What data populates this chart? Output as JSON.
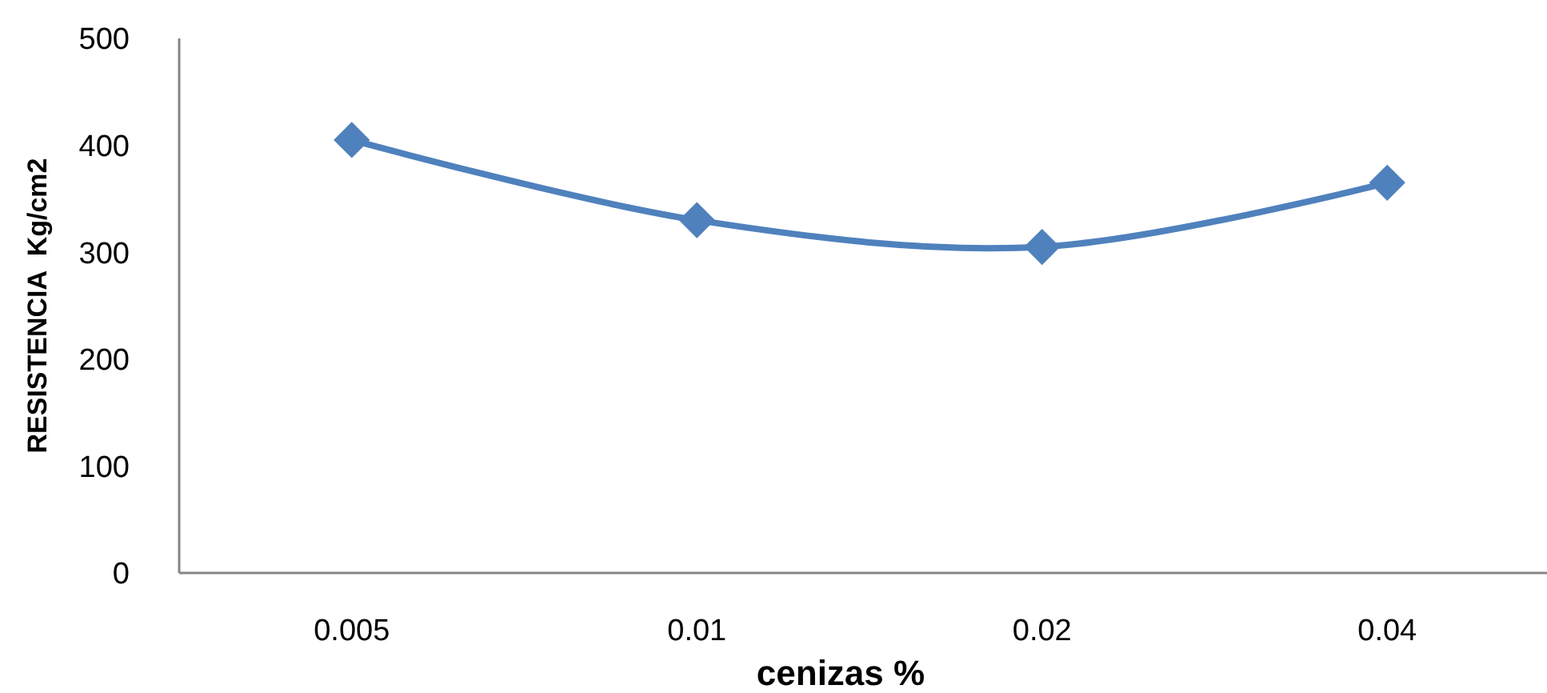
{
  "chart_data": {
    "type": "line",
    "xlabel": "cenizas %",
    "ylabel": "RESISTENCIA  Kg/cm2",
    "categories": [
      "0.005",
      "0.01",
      "0.02",
      "0.04"
    ],
    "series": [
      {
        "color": "#4f81bd",
        "values": [
          405,
          330,
          305,
          365
        ]
      }
    ],
    "ylim": [
      0,
      500
    ],
    "yticks": [
      0,
      100,
      200,
      300,
      400,
      500
    ],
    "marker": "diamond",
    "line_style": "solid"
  }
}
